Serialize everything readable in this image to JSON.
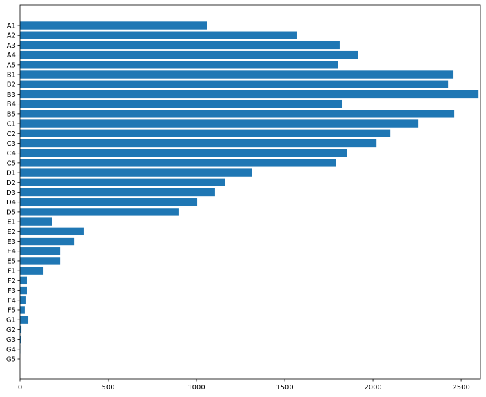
{
  "chart_data": {
    "type": "barh",
    "categories": [
      "A1",
      "A2",
      "A3",
      "A4",
      "A5",
      "B1",
      "B2",
      "B3",
      "B4",
      "B5",
      "C1",
      "C2",
      "C3",
      "C4",
      "C5",
      "D1",
      "D2",
      "D3",
      "D4",
      "D5",
      "E1",
      "E2",
      "E3",
      "E4",
      "E5",
      "F1",
      "F2",
      "F3",
      "F4",
      "F5",
      "G1",
      "G2",
      "G3",
      "G4",
      "G5"
    ],
    "values": [
      1062,
      1570,
      1812,
      1914,
      1801,
      2453,
      2426,
      2598,
      1824,
      2461,
      2258,
      2098,
      2020,
      1852,
      1789,
      1313,
      1160,
      1105,
      1004,
      898,
      180,
      363,
      309,
      227,
      227,
      133,
      39,
      39,
      31,
      27,
      47,
      8,
      4,
      2,
      0
    ],
    "color": "#1f77b4",
    "xlim": [
      0,
      2609
    ],
    "xticks": [
      0,
      500,
      1000,
      1500,
      2000,
      2500
    ]
  }
}
